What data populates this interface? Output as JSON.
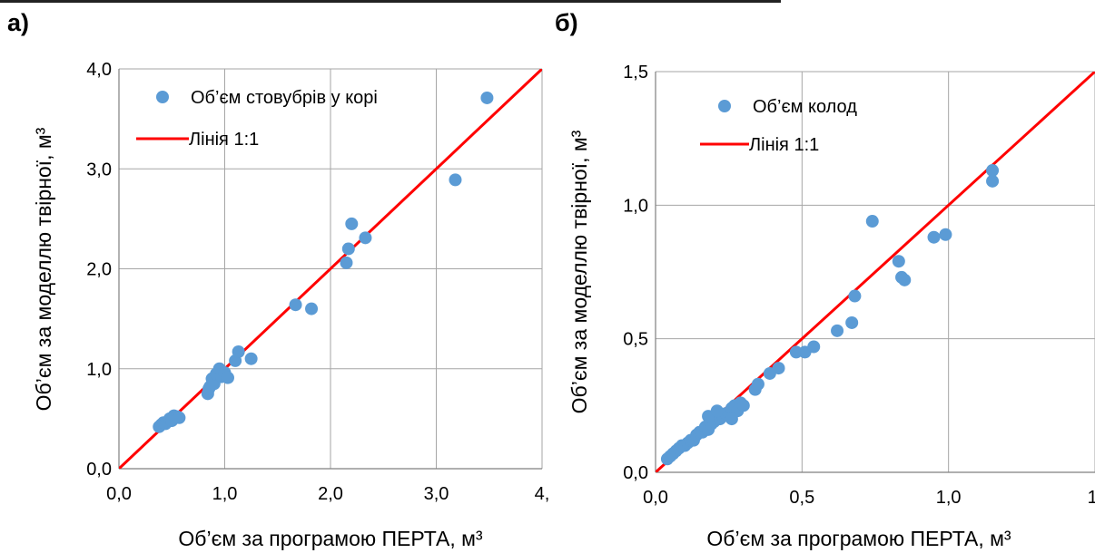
{
  "panels": [
    "а)",
    "б)"
  ],
  "chart_data": [
    {
      "type": "scatter",
      "panel_label": "а)",
      "xlabel": "Об’єм за програмою ПЕРТА, м³",
      "ylabel": "Об’єм  за моделлю твірної, м³",
      "xlim": [
        0,
        4
      ],
      "ylim": [
        0,
        4
      ],
      "xticks": [
        0,
        1,
        2,
        3,
        4
      ],
      "yticks": [
        0,
        1,
        2,
        3,
        4
      ],
      "xtick_labels": [
        "0,0",
        "1,0",
        "2,0",
        "3,0",
        "4,"
      ],
      "ytick_labels": [
        "0,0",
        "1,0",
        "2,0",
        "3,0",
        "4,0"
      ],
      "grid": true,
      "legend_position": "top-left",
      "colors": {
        "points": "#5b9bd5",
        "line": "#ff0000"
      },
      "series": [
        {
          "name": "Об’єм стовубрів у корі",
          "kind": "points",
          "x": [
            0.38,
            0.4,
            0.42,
            0.44,
            0.46,
            0.48,
            0.5,
            0.52,
            0.55,
            0.57,
            0.84,
            0.85,
            0.86,
            0.88,
            0.9,
            0.92,
            0.95,
            0.97,
            1.0,
            1.03,
            1.1,
            1.13,
            1.25,
            1.67,
            1.82,
            2.15,
            2.17,
            2.2,
            2.33,
            3.18,
            3.48
          ],
          "y": [
            0.42,
            0.44,
            0.46,
            0.45,
            0.47,
            0.5,
            0.48,
            0.53,
            0.52,
            0.51,
            0.75,
            0.8,
            0.82,
            0.9,
            0.85,
            0.95,
            1.0,
            0.92,
            0.96,
            0.91,
            1.08,
            1.17,
            1.1,
            1.64,
            1.6,
            2.06,
            2.2,
            2.45,
            2.31,
            2.89,
            3.71
          ]
        },
        {
          "name": "Лінія 1:1",
          "kind": "line",
          "x": [
            0,
            4
          ],
          "y": [
            0,
            4
          ]
        }
      ]
    },
    {
      "type": "scatter",
      "panel_label": "б)",
      "xlabel": "Об’єм за програмою ПЕРТА, м³",
      "ylabel": "Об’єм  за моделлю твірної, м³",
      "xlim": [
        0,
        1.5
      ],
      "ylim": [
        0,
        1.5
      ],
      "xticks": [
        0,
        0.5,
        1.0,
        1.5
      ],
      "yticks": [
        0,
        0.5,
        1.0,
        1.5
      ],
      "xtick_labels": [
        "0,0",
        "0,5",
        "1,0",
        "1,"
      ],
      "ytick_labels": [
        "0,0",
        "0,5",
        "1,0",
        "1,5"
      ],
      "grid": true,
      "legend_position": "top-left",
      "colors": {
        "points": "#5b9bd5",
        "line": "#ff0000"
      },
      "series": [
        {
          "name": "Об’єм колод",
          "kind": "points",
          "x": [
            0.04,
            0.05,
            0.06,
            0.07,
            0.08,
            0.09,
            0.1,
            0.11,
            0.12,
            0.13,
            0.14,
            0.15,
            0.16,
            0.17,
            0.18,
            0.19,
            0.2,
            0.21,
            0.22,
            0.23,
            0.24,
            0.25,
            0.26,
            0.27,
            0.28,
            0.29,
            0.3,
            0.18,
            0.21,
            0.26,
            0.34,
            0.35,
            0.39,
            0.42,
            0.48,
            0.51,
            0.54,
            0.62,
            0.67,
            0.68,
            0.74,
            0.83,
            0.84,
            0.85,
            0.95,
            0.99,
            1.15,
            1.15
          ],
          "y": [
            0.05,
            0.06,
            0.07,
            0.08,
            0.09,
            0.1,
            0.1,
            0.11,
            0.12,
            0.12,
            0.14,
            0.15,
            0.15,
            0.17,
            0.16,
            0.18,
            0.19,
            0.2,
            0.2,
            0.21,
            0.22,
            0.22,
            0.24,
            0.25,
            0.23,
            0.26,
            0.25,
            0.21,
            0.23,
            0.2,
            0.31,
            0.33,
            0.37,
            0.39,
            0.45,
            0.45,
            0.47,
            0.53,
            0.56,
            0.66,
            0.94,
            0.79,
            0.73,
            0.72,
            0.88,
            0.89,
            1.13,
            1.09
          ]
        },
        {
          "name": "Лінія 1:1",
          "kind": "line",
          "x": [
            0,
            1.5
          ],
          "y": [
            0,
            1.5
          ]
        }
      ]
    }
  ]
}
